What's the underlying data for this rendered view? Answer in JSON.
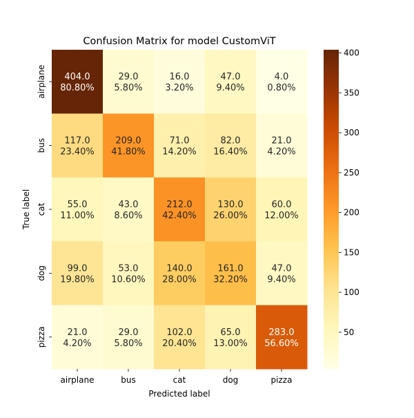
{
  "chart_data": {
    "type": "heatmap",
    "title": "Confusion Matrix for model CustomViT",
    "xlabel": "Predicted label",
    "ylabel": "True label",
    "x_categories": [
      "airplane",
      "bus",
      "cat",
      "dog",
      "pizza"
    ],
    "y_categories": [
      "airplane",
      "bus",
      "cat",
      "dog",
      "pizza"
    ],
    "counts": [
      [
        404.0,
        29.0,
        16.0,
        47.0,
        4.0
      ],
      [
        117.0,
        209.0,
        71.0,
        82.0,
        21.0
      ],
      [
        55.0,
        43.0,
        212.0,
        130.0,
        60.0
      ],
      [
        99.0,
        53.0,
        140.0,
        161.0,
        47.0
      ],
      [
        21.0,
        29.0,
        102.0,
        65.0,
        283.0
      ]
    ],
    "cell_labels": [
      [
        [
          "404.0",
          "80.80%"
        ],
        [
          "29.0",
          "5.80%"
        ],
        [
          "16.0",
          "3.20%"
        ],
        [
          "47.0",
          "9.40%"
        ],
        [
          "4.0",
          "0.80%"
        ]
      ],
      [
        [
          "117.0",
          "23.40%"
        ],
        [
          "209.0",
          "41.80%"
        ],
        [
          "71.0",
          "14.20%"
        ],
        [
          "82.0",
          "16.40%"
        ],
        [
          "21.0",
          "4.20%"
        ]
      ],
      [
        [
          "55.0",
          "11.00%"
        ],
        [
          "43.0",
          "8.60%"
        ],
        [
          "212.0",
          "42.40%"
        ],
        [
          "130.0",
          "26.00%"
        ],
        [
          "60.0",
          "12.00%"
        ]
      ],
      [
        [
          "99.0",
          "19.80%"
        ],
        [
          "53.0",
          "10.60%"
        ],
        [
          "140.0",
          "28.00%"
        ],
        [
          "161.0",
          "32.20%"
        ],
        [
          "47.0",
          "9.40%"
        ]
      ],
      [
        [
          "21.0",
          "4.20%"
        ],
        [
          "29.0",
          "5.80%"
        ],
        [
          "102.0",
          "20.40%"
        ],
        [
          "65.0",
          "13.00%"
        ],
        [
          "283.0",
          "56.60%"
        ]
      ]
    ],
    "colormap": "YlOrBr",
    "colorbar": {
      "min": 4.0,
      "max": 404.0,
      "ticks": [
        50,
        100,
        150,
        200,
        250,
        300,
        350,
        400
      ],
      "tick_labels": [
        "50",
        "100",
        "150",
        "200",
        "250",
        "300",
        "350",
        "400"
      ]
    },
    "grid": false
  }
}
